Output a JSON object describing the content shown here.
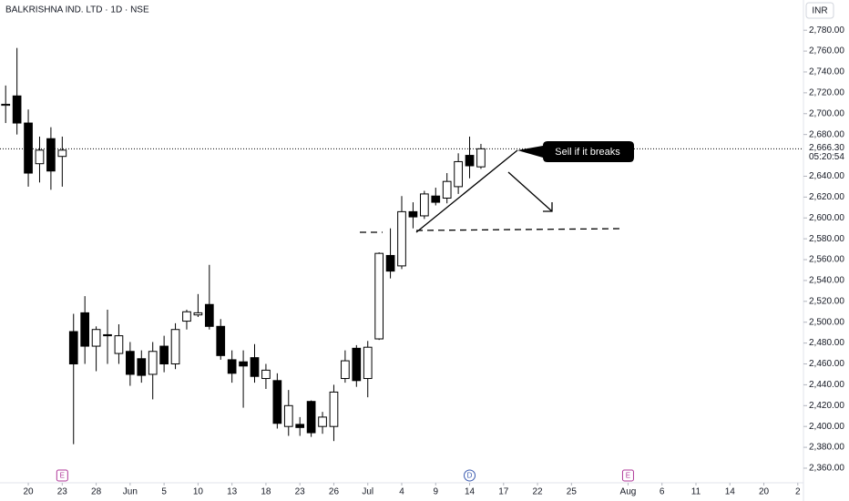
{
  "chart_data": {
    "type": "candlestick",
    "title": "BALKRISHNA IND. LTD · 1D · NSE",
    "currency": "INR",
    "open": [
      2708,
      2717,
      2691,
      2652,
      2676,
      2659,
      2491,
      2509,
      2477,
      2488,
      2470,
      2472,
      2465,
      2450,
      2477,
      2460,
      2501,
      2507,
      2517,
      2496,
      2464,
      2462,
      2466,
      2446,
      2444,
      2400,
      2402,
      2424,
      2400,
      2400,
      2446,
      2475,
      2446,
      2484,
      2564,
      2554,
      2606,
      2602,
      2621,
      2619,
      2630,
      2660,
      2649
    ],
    "high": [
      2727,
      2763,
      2704,
      2678,
      2687,
      2678,
      2508,
      2525,
      2496,
      2512,
      2498,
      2481,
      2473,
      2481,
      2487,
      2499,
      2512,
      2527,
      2555,
      2503,
      2473,
      2473,
      2479,
      2460,
      2451,
      2435,
      2409,
      2425,
      2414,
      2440,
      2473,
      2478,
      2482,
      2567,
      2590,
      2621,
      2615,
      2626,
      2629,
      2643,
      2662,
      2678,
      2671
    ],
    "low": [
      2691,
      2680,
      2630,
      2634,
      2627,
      2630,
      2383,
      2460,
      2453,
      2460,
      2460,
      2439,
      2442,
      2426,
      2452,
      2455,
      2493,
      2505,
      2493,
      2464,
      2442,
      2418,
      2442,
      2436,
      2398,
      2391,
      2391,
      2390,
      2393,
      2386,
      2442,
      2438,
      2428,
      2483,
      2542,
      2551,
      2590,
      2599,
      2612,
      2614,
      2623,
      2638,
      2647
    ],
    "close": [
      2709,
      2691,
      2643,
      2665,
      2645,
      2665,
      2460,
      2477,
      2493,
      2487,
      2487,
      2450,
      2449,
      2472,
      2460,
      2493,
      2510,
      2509,
      2496,
      2468,
      2451,
      2458,
      2448,
      2454,
      2403,
      2420,
      2399,
      2394,
      2409,
      2433,
      2463,
      2444,
      2476,
      2566,
      2549,
      2606,
      2601,
      2623,
      2615,
      2635,
      2654,
      2650,
      2666.3
    ],
    "up_color": "#ffffff",
    "down_color": "#000000",
    "edge_color": "#000000",
    "xlim": [
      -0.5,
      70.5
    ],
    "xticks": [
      {
        "value": 2,
        "label": "20"
      },
      {
        "value": 5,
        "label": "23"
      },
      {
        "value": 8,
        "label": "28"
      },
      {
        "value": 11,
        "label": "Jun"
      },
      {
        "value": 14,
        "label": "5"
      },
      {
        "value": 17,
        "label": "10"
      },
      {
        "value": 20,
        "label": "13"
      },
      {
        "value": 23,
        "label": "18"
      },
      {
        "value": 26,
        "label": "23"
      },
      {
        "value": 29,
        "label": "26"
      },
      {
        "value": 32,
        "label": "Jul"
      },
      {
        "value": 35,
        "label": "4"
      },
      {
        "value": 38,
        "label": "9"
      },
      {
        "value": 41,
        "label": "14"
      },
      {
        "value": 44,
        "label": "17"
      },
      {
        "value": 47,
        "label": "22"
      },
      {
        "value": 50,
        "label": "25"
      },
      {
        "value": 55,
        "label": "Aug"
      },
      {
        "value": 58,
        "label": "6"
      },
      {
        "value": 61,
        "label": "11"
      },
      {
        "value": 64,
        "label": "14"
      },
      {
        "value": 67,
        "label": "20"
      },
      {
        "value": 70,
        "label": "2"
      }
    ],
    "ylim": [
      2346,
      2809
    ],
    "yticks": [
      {
        "value": 2360,
        "label": "2,360.00"
      },
      {
        "value": 2380,
        "label": "2,380.00"
      },
      {
        "value": 2400,
        "label": "2,400.00"
      },
      {
        "value": 2420,
        "label": "2,420.00"
      },
      {
        "value": 2440,
        "label": "2,440.00"
      },
      {
        "value": 2460,
        "label": "2,460.00"
      },
      {
        "value": 2480,
        "label": "2,480.00"
      },
      {
        "value": 2500,
        "label": "2,500.00"
      },
      {
        "value": 2520,
        "label": "2,520.00"
      },
      {
        "value": 2540,
        "label": "2,540.00"
      },
      {
        "value": 2560,
        "label": "2,560.00"
      },
      {
        "value": 2580,
        "label": "2,580.00"
      },
      {
        "value": 2600,
        "label": "2,600.00"
      },
      {
        "value": 2620,
        "label": "2,620.00"
      },
      {
        "value": 2640,
        "label": "2,640.00"
      },
      {
        "value": 2680,
        "label": "2,680.00"
      },
      {
        "value": 2700,
        "label": "2,700.00"
      },
      {
        "value": 2720,
        "label": "2,720.00"
      },
      {
        "value": 2740,
        "label": "2,740.00"
      },
      {
        "value": 2760,
        "label": "2,760.00"
      },
      {
        "value": 2780,
        "label": "2,780.00"
      }
    ],
    "last_price": {
      "value": 2666.3,
      "label": "2,666.30"
    },
    "countdown": "05:20:54",
    "events": [
      {
        "x": 5,
        "label": "E",
        "color": "#b03a9a"
      },
      {
        "x": 41,
        "label": "D",
        "color": "#3b5bb0"
      },
      {
        "x": 55,
        "label": "E",
        "color": "#b03a9a"
      }
    ],
    "annotation": "Sell if it breaks"
  }
}
